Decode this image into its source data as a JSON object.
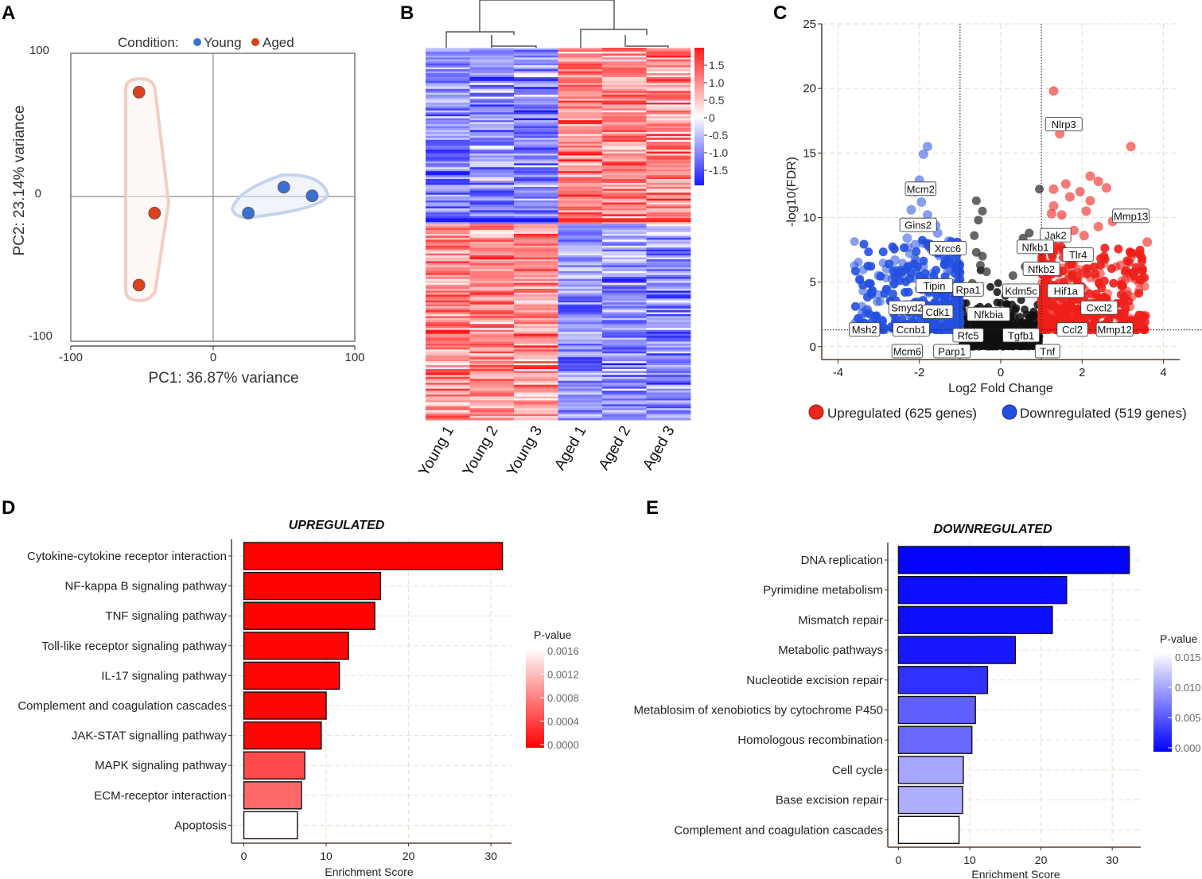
{
  "chart_data": [
    {
      "panel": "A",
      "type": "scatter",
      "title": "",
      "legend_title": "Condition:",
      "legend_placement": "top",
      "xlabel": "PC1: 36.87% variance",
      "ylabel": "PC2: 23.14% variance",
      "xlim": [
        -100,
        100
      ],
      "ylim": [
        -100,
        100
      ],
      "x_ticks": [
        "-100",
        "0",
        "100"
      ],
      "y_ticks": [
        "100",
        "0",
        "-100"
      ],
      "series": [
        {
          "name": "Young",
          "color": "#3b6fd0",
          "points": [
            [
              25,
              -11
            ],
            [
              50,
              7
            ],
            [
              70,
              1
            ]
          ]
        },
        {
          "name": "Aged",
          "color": "#d9421d",
          "points": [
            [
              -52,
              73
            ],
            [
              -41,
              -11
            ],
            [
              -52,
              -61
            ]
          ]
        }
      ]
    },
    {
      "panel": "B",
      "type": "heatmap",
      "columns": [
        "Young 1",
        "Young 2",
        "Young 3",
        "Aged 1",
        "Aged 2",
        "Aged 3"
      ],
      "color_scale_ticks": [
        "1.5",
        "1.0",
        "0.5",
        "0",
        "-0.5",
        "-1.0",
        "-1.5"
      ],
      "color_range": [
        -1.8,
        1.8
      ],
      "colors": {
        "low": "#1a1aff",
        "mid": "#ffffff",
        "high": "#ff1a1a"
      }
    },
    {
      "panel": "C",
      "type": "scatter",
      "xlabel": "Log2 Fold Change",
      "ylabel": "-log10(FDR)",
      "xlim": [
        -4.4,
        4.4
      ],
      "ylim": [
        -1,
        25
      ],
      "x_ticks": [
        "-4",
        "-2",
        "0",
        "2",
        "4"
      ],
      "y_ticks": [
        "25",
        "20",
        "15",
        "10",
        "5",
        "0"
      ],
      "fc_threshold": 1,
      "fdr_threshold": 1.3,
      "legend": [
        {
          "label": "Upregulated (625 genes)",
          "color": "#e8281c"
        },
        {
          "label": "Downregulated (519 genes)",
          "color": "#2450e0"
        }
      ],
      "gene_labels": [
        {
          "gene": "Nlrp3",
          "x": 1.55,
          "y": 17.2
        },
        {
          "gene": "Mcm2",
          "x": -1.97,
          "y": 12.2
        },
        {
          "gene": "Mmp13",
          "x": 3.2,
          "y": 10.1
        },
        {
          "gene": "Gins2",
          "x": -2.03,
          "y": 9.4
        },
        {
          "gene": "Jak2",
          "x": 1.35,
          "y": 8.6
        },
        {
          "gene": "Nfkb1",
          "x": 0.85,
          "y": 7.7
        },
        {
          "gene": "Xrcc6",
          "x": -1.3,
          "y": 7.6
        },
        {
          "gene": "Tlr4",
          "x": 1.9,
          "y": 7.1
        },
        {
          "gene": "Nfkb2",
          "x": 1.0,
          "y": 6.0
        },
        {
          "gene": "Tipin",
          "x": -1.63,
          "y": 4.7
        },
        {
          "gene": "Rpa1",
          "x": -0.8,
          "y": 4.4
        },
        {
          "gene": "Kdm5c",
          "x": 0.5,
          "y": 4.3
        },
        {
          "gene": "Hif1a",
          "x": 1.6,
          "y": 4.3
        },
        {
          "gene": "Smyd2",
          "x": -2.3,
          "y": 2.99
        },
        {
          "gene": "Cxcl2",
          "x": 2.42,
          "y": 2.99
        },
        {
          "gene": "Cdk1",
          "x": -1.55,
          "y": 2.67
        },
        {
          "gene": "Nfkbia",
          "x": -0.3,
          "y": 2.49
        },
        {
          "gene": "Msh2",
          "x": -3.35,
          "y": 1.3
        },
        {
          "gene": "Ccnb1",
          "x": -2.2,
          "y": 1.3
        },
        {
          "gene": "Ccl2",
          "x": 1.76,
          "y": 1.3
        },
        {
          "gene": "Mmp12",
          "x": 2.8,
          "y": 1.3
        },
        {
          "gene": "Rfc5",
          "x": -0.8,
          "y": 0.85
        },
        {
          "gene": "Tgfb1",
          "x": 0.5,
          "y": 0.85
        },
        {
          "gene": "Mcm6",
          "x": -2.3,
          "y": -0.38
        },
        {
          "gene": "Parp1",
          "x": -1.2,
          "y": -0.38
        },
        {
          "gene": "Tnf",
          "x": 1.15,
          "y": -0.38
        }
      ]
    },
    {
      "panel": "D",
      "type": "bar",
      "orientation": "horizontal",
      "title": "UPREGULATED",
      "xlabel": "Enrichment Score",
      "xlim": [
        -1.5,
        32.5
      ],
      "x_ticks": [
        0,
        10,
        20,
        30
      ],
      "legend_title": "P-value",
      "legend_ticks": [
        "0.0016",
        "0.0012",
        "0.0008",
        "0.0004",
        "0.0000"
      ],
      "legend_range": [
        0,
        0.0017
      ],
      "color_low": "#ff0000",
      "color_high": "#ffffff",
      "categories": [
        "Cytokine-cytokine receptor interaction",
        "NF-kappa B signaling pathway",
        "TNF signaling pathway",
        "Toll-like receptor signaling pathway",
        "IL-17 signaling pathway",
        "Complement and coagulation cascades",
        "JAK-STAT signalling pathway",
        "MAPK signaling pathway",
        "ECM-receptor interaction",
        "Apoptosis"
      ],
      "values": [
        31.4,
        16.6,
        15.9,
        12.7,
        11.6,
        10.0,
        9.4,
        7.4,
        7.0,
        6.5
      ],
      "pvalues": [
        0.0,
        1e-05,
        1e-05,
        3e-05,
        3e-05,
        4e-05,
        4e-05,
        0.0005,
        0.0007,
        0.0017
      ]
    },
    {
      "panel": "E",
      "type": "bar",
      "orientation": "horizontal",
      "title": "DOWNREGULATED",
      "xlabel": "Enrichment Score",
      "xlim": [
        -1.5,
        34
      ],
      "x_ticks": [
        0,
        10,
        20,
        30
      ],
      "legend_title": "P-value",
      "legend_ticks": [
        "0.015",
        "0.010",
        "0.005",
        "0.000"
      ],
      "legend_range": [
        0,
        0.016
      ],
      "color_low": "#0000ff",
      "color_high": "#ffffff",
      "categories": [
        "DNA replication",
        "Pyrimidine metabolism",
        "Mismatch repair",
        "Metabolic pathways",
        "Nucleotide excision repair",
        "Metablosim of xenobiotics by cytochrome P450",
        "Homologous recombination",
        "Cell cycle",
        "Base excision repair",
        "Complement and coagulation cascades"
      ],
      "values": [
        32.4,
        23.6,
        21.6,
        16.4,
        12.5,
        10.8,
        10.3,
        9.1,
        9.0,
        8.5
      ],
      "pvalues": [
        0.0002,
        0.0008,
        0.0009,
        0.0015,
        0.003,
        0.006,
        0.0065,
        0.0105,
        0.011,
        0.016
      ]
    }
  ],
  "panel_labels": [
    "A",
    "B",
    "C",
    "D",
    "E"
  ]
}
